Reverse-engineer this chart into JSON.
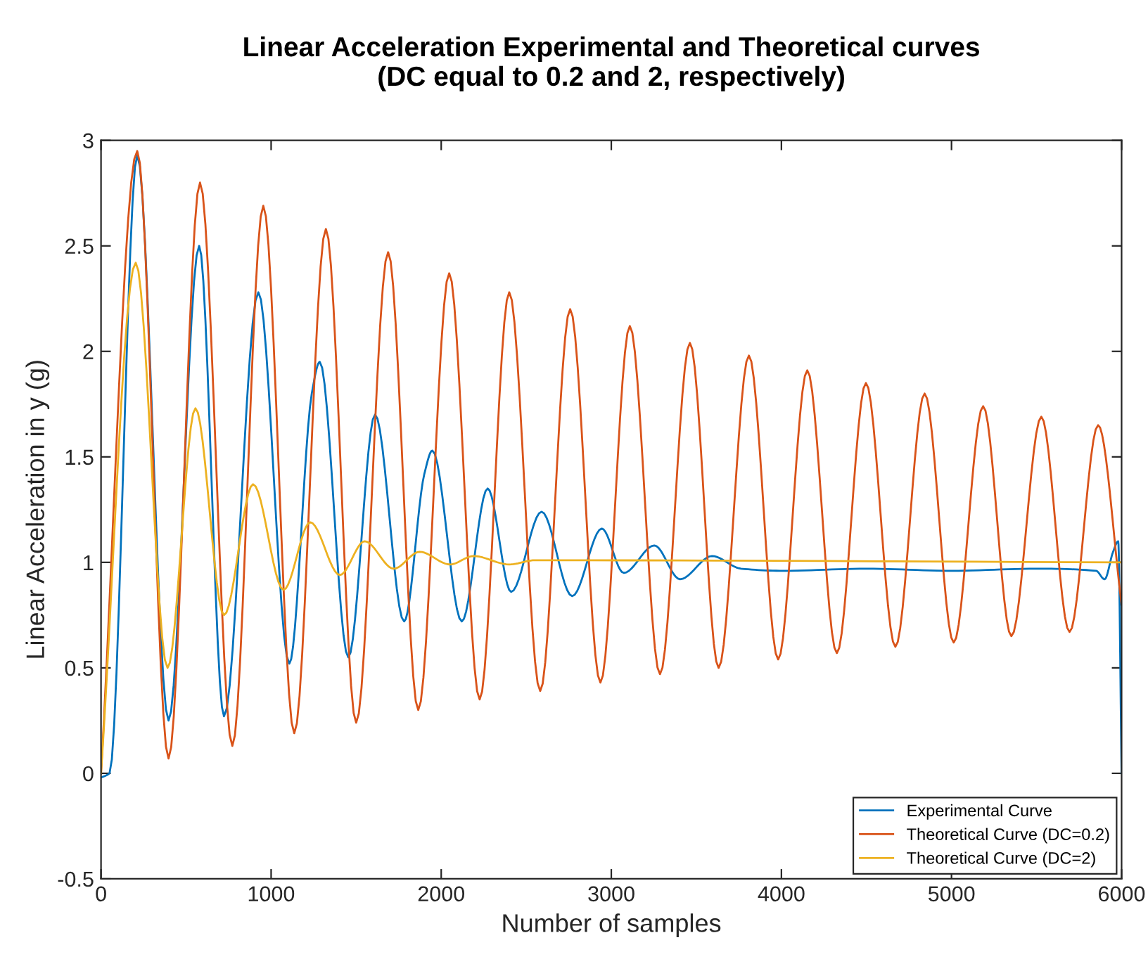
{
  "chart_data": {
    "type": "line",
    "title": "Linear Acceleration Experimental and Theoretical curves\n(DC equal to 0.2 and 2, respectively)",
    "xlabel": "Number of samples",
    "ylabel": "Linear Acceleration in y (g)",
    "xlim": [
      0,
      6000
    ],
    "xticks": [
      0,
      1000,
      2000,
      3000,
      4000,
      5000,
      6000
    ],
    "ylim": [
      -0.5,
      3
    ],
    "yticks": [
      -0.5,
      0,
      0.5,
      1,
      1.5,
      2,
      2.5,
      3
    ],
    "grid": false,
    "legend": "bottom right",
    "line_style": "solid",
    "series": [
      {
        "name": "Experimental Curve",
        "color": "#0072bd",
        "x": [
          0,
          50,
          213,
          397,
          577,
          723,
          925,
          1107,
          1239,
          1286,
          1454,
          1611,
          1782,
          1901,
          1948,
          2121,
          2273,
          2411,
          2590,
          2770,
          2944,
          3073,
          3253,
          3404,
          3592,
          3763,
          4011,
          4500,
          5000,
          5500,
          5850,
          5900,
          5950,
          5980,
          6000
        ],
        "values": [
          -0.02,
          0.0,
          2.93,
          0.25,
          2.5,
          0.27,
          2.28,
          0.52,
          1.8,
          1.95,
          0.55,
          1.7,
          0.72,
          1.42,
          1.53,
          0.72,
          1.35,
          0.86,
          1.24,
          0.84,
          1.16,
          0.95,
          1.08,
          0.92,
          1.03,
          0.97,
          0.96,
          0.97,
          0.96,
          0.97,
          0.96,
          0.92,
          1.05,
          1.1,
          0.0
        ]
      },
      {
        "name": "Theoretical Curve (DC=0.2)",
        "color": "#d95319",
        "x": [
          0,
          213,
          397,
          582,
          772,
          954,
          1136,
          1322,
          1500,
          1688,
          1865,
          2047,
          2226,
          2400,
          2582,
          2758,
          2936,
          3109,
          3286,
          3462,
          3631,
          3809,
          3981,
          4152,
          4326,
          4497,
          4670,
          4842,
          5013,
          5186,
          5352,
          5528,
          5694,
          5862,
          6000
        ],
        "values": [
          0,
          2.95,
          0.07,
          2.8,
          0.13,
          2.69,
          0.19,
          2.58,
          0.24,
          2.47,
          0.3,
          2.37,
          0.35,
          2.28,
          0.39,
          2.2,
          0.43,
          2.12,
          0.47,
          2.04,
          0.5,
          1.98,
          0.54,
          1.91,
          0.57,
          1.85,
          0.6,
          1.8,
          0.62,
          1.74,
          0.65,
          1.69,
          0.67,
          1.65,
          0.8
        ]
      },
      {
        "name": "Theoretical Curve (DC=2)",
        "color": "#edb120",
        "x": [
          0,
          204,
          391,
          555,
          723,
          894,
          1073,
          1230,
          1404,
          1550,
          1721,
          1873,
          2052,
          2190,
          2400,
          2550,
          6000
        ],
        "values": [
          0,
          2.42,
          0.5,
          1.73,
          0.75,
          1.37,
          0.87,
          1.19,
          0.94,
          1.1,
          0.97,
          1.05,
          0.99,
          1.03,
          0.99,
          1.01,
          1.0
        ]
      }
    ]
  }
}
